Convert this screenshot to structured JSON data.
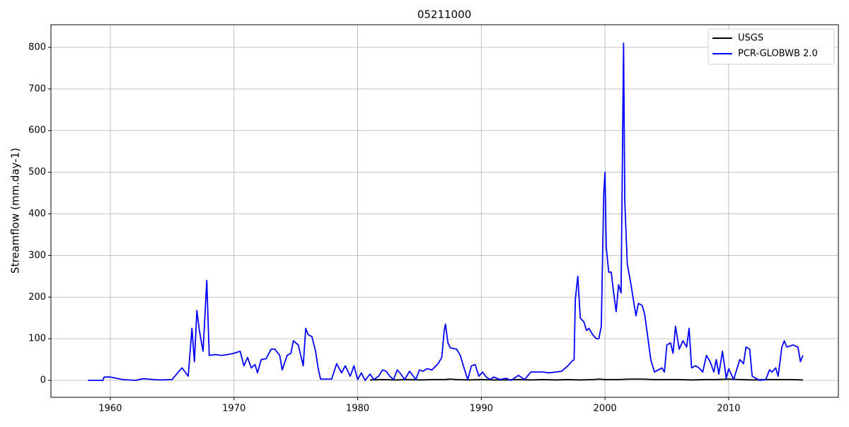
{
  "chart_data": {
    "type": "line",
    "title": "05211000",
    "ylabel": "Streamflow (mm.day-1)",
    "xlim": [
      1955.2,
      2018.87
    ],
    "ylim": [
      -40.7,
      854.3
    ],
    "xticks": [
      1960,
      1970,
      1980,
      1990,
      2000,
      2010
    ],
    "yticks": [
      0,
      100,
      200,
      300,
      400,
      500,
      600,
      700,
      800
    ],
    "grid": true,
    "legend": "upper right",
    "series": [
      {
        "name": "USGS",
        "color": "#000000",
        "x": [
          1981.0,
          1982.0,
          1983.0,
          1984.0,
          1985.0,
          1986.0,
          1987.0,
          1987.5,
          1988.0,
          1989.0,
          1990.0,
          1991.0,
          1992.0,
          1993.0,
          1994.0,
          1995.0,
          1996.0,
          1997.0,
          1998.0,
          1999.0,
          1999.5,
          2000.0,
          2001.0,
          2002.0,
          2003.0,
          2004.0,
          2005.0,
          2006.0,
          2007.0,
          2008.0,
          2009.0,
          2010.0,
          2011.0,
          2012.0,
          2013.0,
          2014.0,
          2015.0,
          2016.0
        ],
        "values": [
          1,
          2,
          1,
          2,
          1,
          2,
          2,
          3,
          2,
          1,
          2,
          1,
          1,
          2,
          1,
          2,
          1,
          2,
          1,
          2,
          3,
          2,
          2,
          3,
          3,
          2,
          2,
          2,
          1,
          2,
          2,
          3,
          2,
          1,
          2,
          2,
          2,
          1
        ]
      },
      {
        "name": "PCR-GLOBWB 2.0",
        "color": "#0000ff",
        "x": [
          1958.2,
          1959.4,
          1959.5,
          1960.0,
          1960.5,
          1961.0,
          1962.0,
          1962.7,
          1963.5,
          1964.0,
          1965.0,
          1965.5,
          1965.8,
          1966.3,
          1966.6,
          1966.8,
          1967.0,
          1967.2,
          1967.5,
          1967.8,
          1968.0,
          1968.5,
          1969.0,
          1969.5,
          1970.0,
          1970.5,
          1970.8,
          1971.1,
          1971.4,
          1971.7,
          1971.9,
          1972.2,
          1972.6,
          1973.0,
          1973.3,
          1973.7,
          1973.9,
          1974.3,
          1974.6,
          1974.8,
          1975.2,
          1975.6,
          1975.8,
          1976.0,
          1976.3,
          1976.6,
          1976.8,
          1977.0,
          1977.5,
          1977.9,
          1978.3,
          1978.7,
          1979.0,
          1979.4,
          1979.7,
          1980.0,
          1980.3,
          1980.6,
          1981.0,
          1981.3,
          1981.7,
          1982.0,
          1982.3,
          1982.6,
          1982.9,
          1983.2,
          1983.5,
          1983.8,
          1984.2,
          1984.5,
          1984.7,
          1985.0,
          1985.3,
          1985.6,
          1986.0,
          1986.5,
          1986.8,
          1987.0,
          1987.1,
          1987.3,
          1987.5,
          1988.0,
          1988.3,
          1988.6,
          1988.9,
          1989.2,
          1989.5,
          1989.8,
          1990.1,
          1990.4,
          1990.7,
          1991.0,
          1991.5,
          1992.0,
          1992.4,
          1993.0,
          1993.5,
          1994.0,
          1995.0,
          1995.5,
          1996.0,
          1996.5,
          1997.0,
          1997.3,
          1997.5,
          1997.6,
          1997.8,
          1998.0,
          1998.3,
          1998.5,
          1998.7,
          1999.0,
          1999.3,
          1999.5,
          1999.7,
          1999.9,
          2000.0,
          2000.1,
          2000.3,
          2000.5,
          2000.7,
          2000.9,
          2001.1,
          2001.3,
          2001.5,
          2001.6,
          2001.8,
          2002.1,
          2002.5,
          2002.7,
          2003.0,
          2003.2,
          2003.5,
          2003.7,
          2004.0,
          2004.3,
          2004.6,
          2004.8,
          2005.0,
          2005.3,
          2005.5,
          2005.7,
          2006.0,
          2006.3,
          2006.6,
          2006.8,
          2007.0,
          2007.3,
          2007.6,
          2007.9,
          2008.2,
          2008.5,
          2008.8,
          2009.0,
          2009.2,
          2009.5,
          2009.8,
          2010.0,
          2010.4,
          2010.9,
          2011.2,
          2011.4,
          2011.7,
          2011.9,
          2012.2,
          2012.5,
          2013.0,
          2013.3,
          2013.5,
          2013.8,
          2014.0,
          2014.3,
          2014.5,
          2014.7,
          2015.2,
          2015.6,
          2015.8,
          2016.0
        ],
        "values": [
          0,
          0,
          8,
          8,
          5,
          2,
          0,
          4,
          2,
          1,
          2,
          20,
          30,
          10,
          125,
          45,
          168,
          120,
          70,
          240,
          60,
          62,
          60,
          62,
          65,
          70,
          35,
          55,
          30,
          38,
          18,
          50,
          52,
          75,
          75,
          60,
          25,
          60,
          65,
          95,
          85,
          35,
          125,
          110,
          105,
          70,
          30,
          3,
          3,
          3,
          40,
          18,
          35,
          10,
          35,
          2,
          18,
          0,
          15,
          2,
          10,
          25,
          22,
          10,
          2,
          25,
          15,
          2,
          22,
          10,
          2,
          25,
          22,
          28,
          25,
          40,
          55,
          120,
          135,
          90,
          78,
          75,
          60,
          30,
          2,
          35,
          38,
          10,
          20,
          8,
          2,
          8,
          2,
          5,
          0,
          12,
          2,
          20,
          20,
          18,
          20,
          22,
          35,
          45,
          50,
          195,
          250,
          150,
          140,
          120,
          125,
          110,
          100,
          100,
          130,
          450,
          500,
          320,
          260,
          260,
          210,
          165,
          230,
          210,
          810,
          430,
          280,
          230,
          155,
          185,
          180,
          160,
          95,
          50,
          20,
          25,
          30,
          20,
          85,
          90,
          65,
          130,
          75,
          95,
          80,
          125,
          30,
          35,
          30,
          20,
          60,
          45,
          20,
          50,
          15,
          70,
          5,
          28,
          2,
          50,
          40,
          80,
          75,
          10,
          5,
          0,
          2,
          25,
          20,
          30,
          10,
          80,
          95,
          80,
          85,
          80,
          45,
          60
        ]
      }
    ]
  }
}
